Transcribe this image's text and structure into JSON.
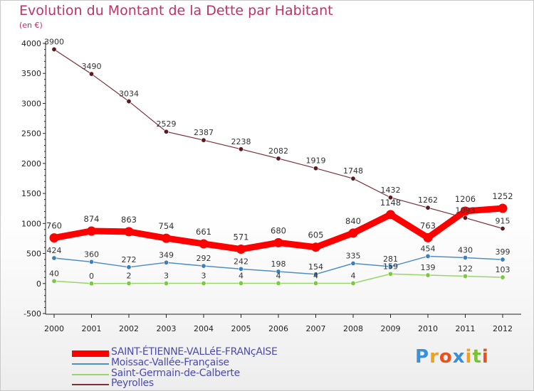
{
  "title": "Evolution du Montant de la Dette par Habitant",
  "subtitle": "(en €)",
  "logo": {
    "text": "Proxiti",
    "letters": [
      "P",
      "r",
      "o",
      "x",
      "i",
      "t",
      "i"
    ]
  },
  "legend": [
    {
      "label": "SAINT-ÉTIENNE-VALLéE-FRANçAISE",
      "color": "#ff0000"
    },
    {
      "label": "Moissac-Vallée-Française",
      "color": "#4f8fc4"
    },
    {
      "label": "Saint-Germain-de-Calberte",
      "color": "#9ad56a"
    },
    {
      "label": "Peyrolles",
      "color": "#6b1f25"
    }
  ],
  "chart_data": {
    "type": "line",
    "title": "Evolution du Montant de la Dette par Habitant",
    "subtitle": "(en €)",
    "x": [
      "2000",
      "2001",
      "2002",
      "2003",
      "2004",
      "2005",
      "2006",
      "2007",
      "2008",
      "2009",
      "2010",
      "2011",
      "2012"
    ],
    "ylim": [
      -500,
      4000
    ],
    "yticks": [
      -500,
      0,
      500,
      1000,
      1500,
      2000,
      2500,
      3000,
      3500,
      4000
    ],
    "grid": false,
    "legend_position": "bottom-left",
    "series": [
      {
        "name": "SAINT-ÉTIENNE-VALLéE-FRANçAISE",
        "color": "#ff0000",
        "marker": "#ff0000",
        "values": [
          760,
          874,
          863,
          754,
          661,
          571,
          680,
          605,
          840,
          1148,
          763,
          1206,
          1252
        ]
      },
      {
        "name": "Moissac-Vallée-Française",
        "color": "#4f8fc4",
        "marker": "#3d7fb8",
        "values": [
          424,
          360,
          272,
          349,
          292,
          242,
          198,
          154,
          335,
          281,
          454,
          430,
          399
        ]
      },
      {
        "name": "Saint-Germain-de-Calberte",
        "color": "#9ad56a",
        "marker": "#7ac943",
        "values": [
          40,
          0,
          2,
          3,
          3,
          4,
          4,
          4,
          4,
          159,
          139,
          122,
          103
        ]
      },
      {
        "name": "Peyrolles",
        "color": "#7a3038",
        "marker": "#5a1a20",
        "values": [
          3900,
          3490,
          3034,
          2529,
          2387,
          2238,
          2082,
          1919,
          1748,
          1432,
          1262,
          1093,
          915
        ]
      }
    ]
  }
}
